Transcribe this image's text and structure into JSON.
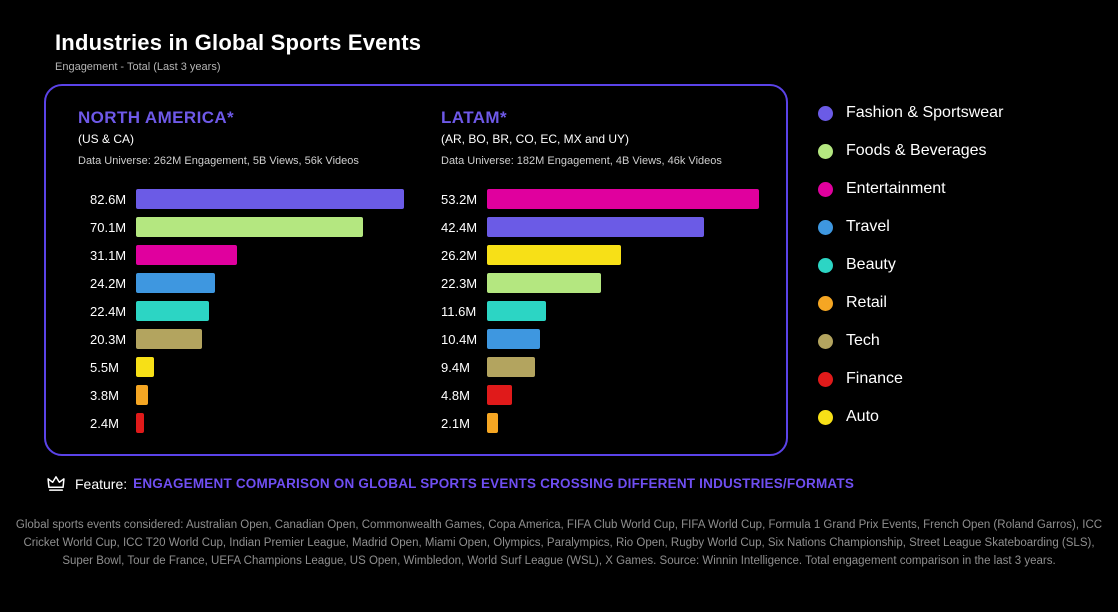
{
  "page": {
    "title": "Industries in Global Sports Events",
    "subtitle": "Engagement - Total (Last 3 years)"
  },
  "colors": {
    "accent_purple": "#5b43e8",
    "feature_purple": "#6f4ef2",
    "background": "#000000"
  },
  "chart_data": [
    {
      "type": "bar",
      "orientation": "horizontal",
      "title": "NORTH AMERICA*",
      "subtitle": "(US & CA)",
      "data_universe": "Data Universe: 262M Engagement, 5B Views, 56k Videos",
      "unit": "M (engagement)",
      "bars": [
        {
          "category": "Fashion & Sportswear",
          "label": "82.6M",
          "value": 82.6,
          "color": "#6b5be6"
        },
        {
          "category": "Foods & Beverages",
          "label": "70.1M",
          "value": 70.1,
          "color": "#b4e780"
        },
        {
          "category": "Entertainment",
          "label": "31.1M",
          "value": 31.1,
          "color": "#e0009e"
        },
        {
          "category": "Travel",
          "label": "24.2M",
          "value": 24.2,
          "color": "#3e97e0"
        },
        {
          "category": "Beauty",
          "label": "22.4M",
          "value": 22.4,
          "color": "#2cd5c4"
        },
        {
          "category": "Tech",
          "label": "20.3M",
          "value": 20.3,
          "color": "#b3a45f"
        },
        {
          "category": "Auto",
          "label": "5.5M",
          "value": 5.5,
          "color": "#f7e017"
        },
        {
          "category": "Retail",
          "label": "3.8M",
          "value": 3.8,
          "color": "#f5a623"
        },
        {
          "category": "Finance",
          "label": "2.4M",
          "value": 2.4,
          "color": "#e01a1a"
        }
      ]
    },
    {
      "type": "bar",
      "orientation": "horizontal",
      "title": "LATAM*",
      "subtitle": "(AR, BO, BR, CO, EC, MX and UY)",
      "data_universe": "Data Universe: 182M Engagement, 4B Views, 46k Videos",
      "unit": "M (engagement)",
      "bars": [
        {
          "category": "Entertainment",
          "label": "53.2M",
          "value": 53.2,
          "color": "#e0009e"
        },
        {
          "category": "Fashion & Sportswear",
          "label": "42.4M",
          "value": 42.4,
          "color": "#6b5be6"
        },
        {
          "category": "Auto",
          "label": "26.2M",
          "value": 26.2,
          "color": "#f7e017"
        },
        {
          "category": "Foods & Beverages",
          "label": "22.3M",
          "value": 22.3,
          "color": "#b4e780"
        },
        {
          "category": "Beauty",
          "label": "11.6M",
          "value": 11.6,
          "color": "#2cd5c4"
        },
        {
          "category": "Travel",
          "label": "10.4M",
          "value": 10.4,
          "color": "#3e97e0"
        },
        {
          "category": "Tech",
          "label": "9.4M",
          "value": 9.4,
          "color": "#b3a45f"
        },
        {
          "category": "Finance",
          "label": "4.8M",
          "value": 4.8,
          "color": "#e01a1a"
        },
        {
          "category": "Retail",
          "label": "2.1M",
          "value": 2.1,
          "color": "#f5a623"
        }
      ]
    }
  ],
  "legend": [
    {
      "label": "Fashion & Sportswear",
      "color": "#6b5be6"
    },
    {
      "label": "Foods & Beverages",
      "color": "#b4e780"
    },
    {
      "label": "Entertainment",
      "color": "#e0009e"
    },
    {
      "label": "Travel",
      "color": "#3e97e0"
    },
    {
      "label": "Beauty",
      "color": "#2cd5c4"
    },
    {
      "label": "Retail",
      "color": "#f5a623"
    },
    {
      "label": "Tech",
      "color": "#b3a45f"
    },
    {
      "label": "Finance",
      "color": "#e01a1a"
    },
    {
      "label": "Auto",
      "color": "#f7e017"
    }
  ],
  "feature": {
    "prefix": "Feature:",
    "text": "ENGAGEMENT COMPARISON ON GLOBAL SPORTS EVENTS CROSSING DIFFERENT INDUSTRIES/FORMATS"
  },
  "footer": "Global sports events considered: Australian Open, Canadian Open, Commonwealth Games, Copa America, FIFA Club World Cup, FIFA World Cup, Formula 1 Grand Prix Events, French Open (Roland Garros), ICC Cricket World Cup, ICC T20 World Cup, Indian Premier League, Madrid Open, Miami Open, Olympics, Paralympics, Rio Open, Rugby World Cup, Six Nations Championship, Street League Skateboarding (SLS), Super Bowl, Tour de France, UEFA Champions League, US Open, Wimbledon, World Surf League (WSL), X Games. Source: Winnin Intelligence. Total engagement comparison in the last 3 years."
}
